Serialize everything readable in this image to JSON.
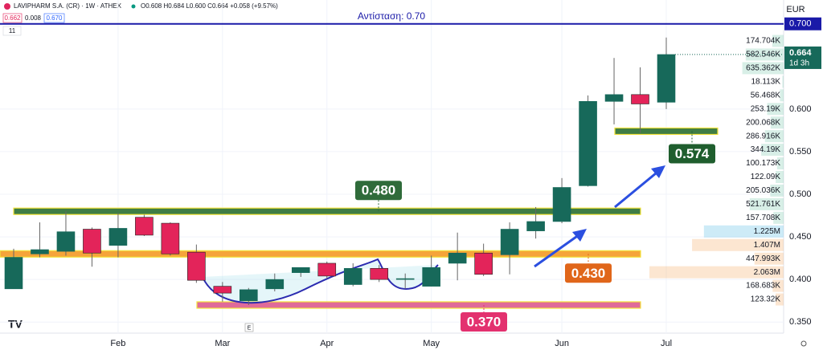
{
  "header": {
    "symbol": "LAVIPHARM S.A. (CR) · 1W · ATHEX",
    "ohlc": "O0.608 H0.684 L0.600 C0.664 +0.058 (+9.57%)",
    "bid": "0.662",
    "spread": "0.008",
    "ask": "0.670",
    "count": "11"
  },
  "chart_data": {
    "type": "candlestick",
    "currency": "EUR",
    "categories": [
      null,
      null,
      null,
      null,
      "Feb",
      null,
      null,
      null,
      "Mar",
      null,
      null,
      null,
      "Apr",
      null,
      null,
      null,
      "May",
      null,
      null,
      null,
      null,
      "Jun",
      null,
      null,
      null,
      "Jul"
    ],
    "open": [
      0.389,
      0.43,
      0.433,
      0.459,
      0.44,
      0.473,
      0.466,
      0.432,
      0.392,
      0.375,
      0.389,
      0.408,
      0.419,
      0.394,
      0.413,
      0.4,
      0.392,
      0.419,
      0.431,
      0.429,
      0.457,
      0.468,
      0.51,
      0.609,
      0.617,
      0.608
    ],
    "high": [
      0.436,
      0.467,
      0.48,
      0.461,
      0.478,
      0.476,
      0.467,
      0.441,
      0.397,
      0.39,
      0.407,
      0.414,
      0.421,
      0.419,
      0.417,
      0.407,
      0.428,
      0.455,
      0.442,
      0.467,
      0.485,
      0.519,
      0.616,
      0.66,
      0.649,
      0.684
    ],
    "low": [
      0.389,
      0.426,
      0.428,
      0.415,
      0.426,
      0.451,
      0.428,
      0.396,
      0.374,
      0.37,
      0.386,
      0.403,
      0.401,
      0.392,
      0.397,
      0.389,
      0.392,
      0.399,
      0.404,
      0.406,
      0.448,
      0.466,
      0.509,
      0.582,
      0.572,
      0.6
    ],
    "close": [
      0.426,
      0.435,
      0.456,
      0.431,
      0.46,
      0.452,
      0.43,
      0.399,
      0.384,
      0.388,
      0.4,
      0.414,
      0.404,
      0.413,
      0.4,
      0.401,
      0.414,
      0.431,
      0.406,
      0.459,
      0.468,
      0.508,
      0.609,
      0.617,
      0.606,
      0.664
    ],
    "up_color": "#17695a",
    "down_color": "#e3245a",
    "ylim": [
      0.337,
      0.728
    ],
    "yticks": [
      {
        "value": 0.35,
        "label": "0.350"
      },
      {
        "value": 0.4,
        "label": "0.400"
      },
      {
        "value": 0.45,
        "label": "0.450"
      },
      {
        "value": 0.5,
        "label": "0.500"
      },
      {
        "value": 0.55,
        "label": "0.550"
      },
      {
        "value": 0.6,
        "label": "0.600"
      }
    ],
    "grid": true,
    "resistance": {
      "text": "Αντίσταση: 0.70",
      "value": 0.7,
      "label": "0.700",
      "color": "#1a1aa8"
    },
    "last_price": {
      "value": 0.664,
      "label": "0.664",
      "countdown": "1d 3h"
    },
    "levels": [
      {
        "value": 0.48,
        "label": "0.480",
        "color": "#2f6b3a"
      },
      {
        "value": 0.43,
        "label": "0.430",
        "color": "#e0661a"
      },
      {
        "value": 0.37,
        "label": "0.370",
        "color": "#e3316f"
      },
      {
        "value": 0.574,
        "label": "0.574",
        "color": "#1f5e2e"
      }
    ],
    "volume_profile": {
      "values": [
        174704,
        582546,
        635362,
        18113,
        56468,
        253190,
        200068,
        286916,
        344190,
        100173,
        122090,
        205036,
        521761,
        157708,
        1225000,
        1407000,
        447993,
        2063000,
        168683,
        123320
      ],
      "value_labels": [
        "174.704K",
        "582.546K",
        "635.362K",
        "18.113K",
        "56.468K",
        "253.19K",
        "200.068K",
        "286.916K",
        "344.19K",
        "100.173K",
        "122.09K",
        "205.036K",
        "521.761K",
        "157.708K",
        "1.225M",
        "1.407M",
        "447.993K",
        "2.063M",
        "168.683K",
        "123.32K"
      ]
    }
  }
}
